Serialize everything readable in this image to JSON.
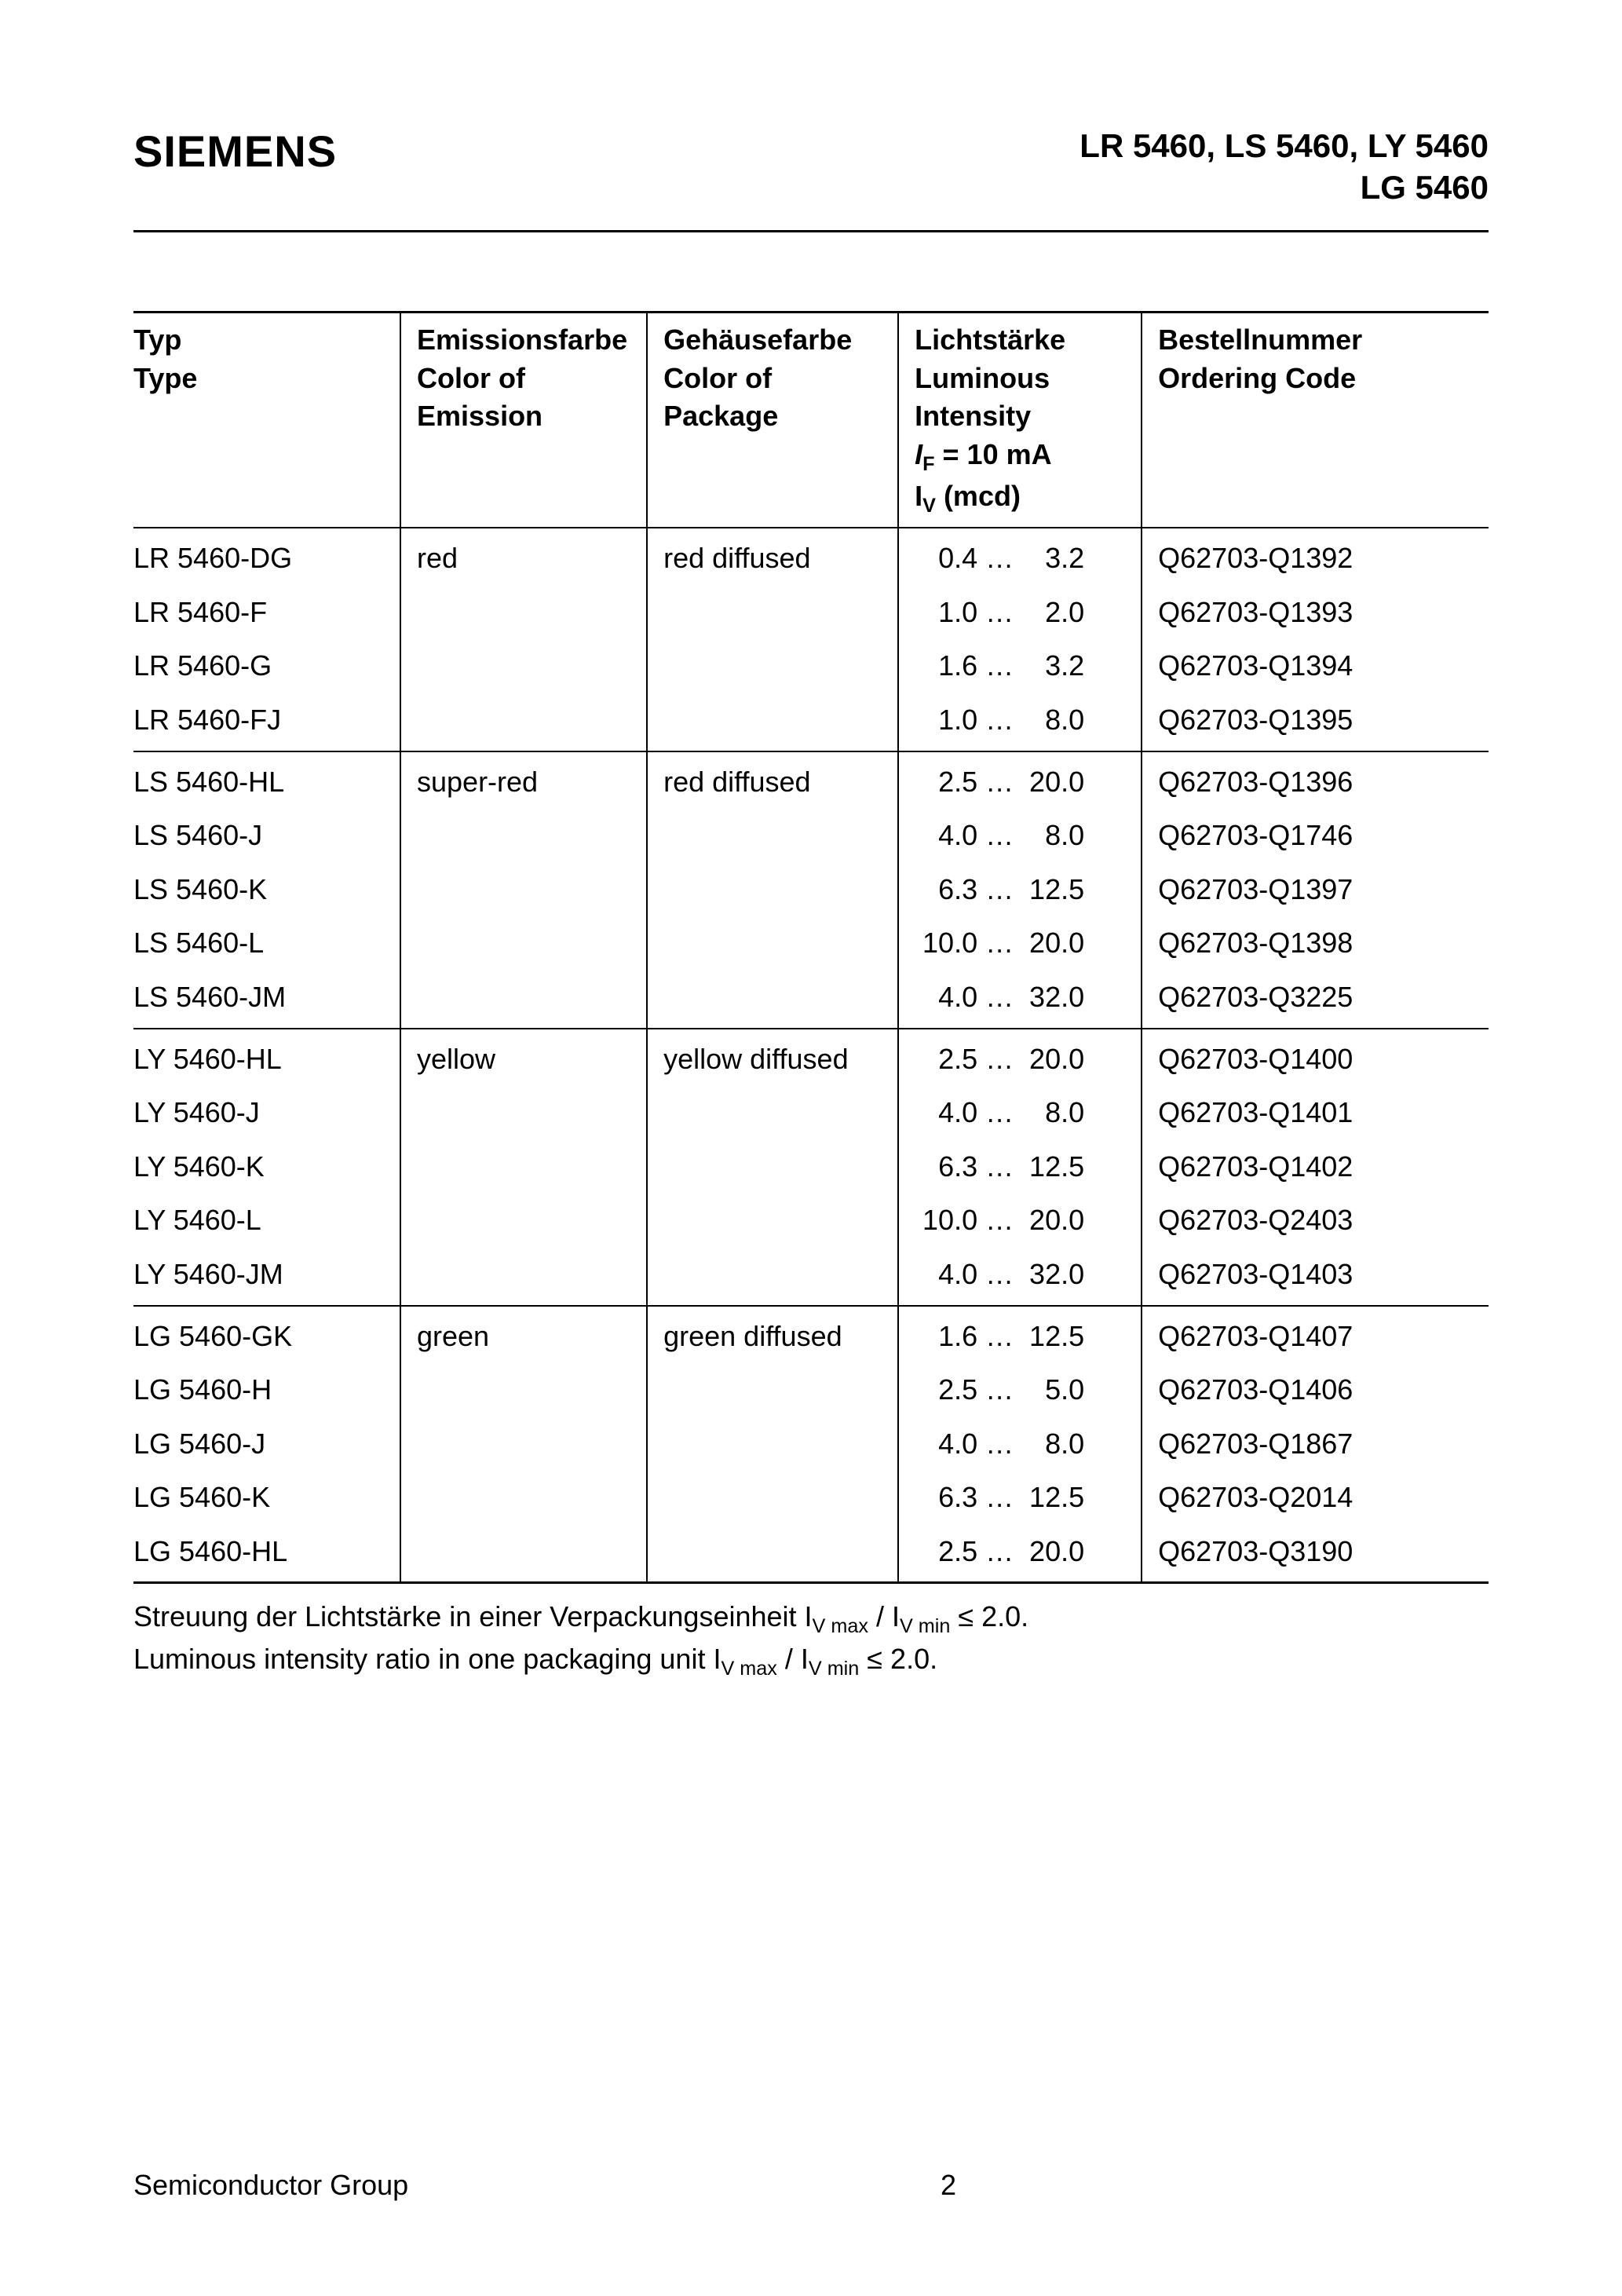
{
  "header": {
    "logo": "SIEMENS",
    "title_line1": "LR 5460, LS 5460, LY 5460",
    "title_line2": "LG 5460"
  },
  "table": {
    "columns": {
      "type": {
        "de": "Typ",
        "en": "Type"
      },
      "emission": {
        "de": "Emissionsfarbe",
        "en_l1": "Color of",
        "en_l2": "Emission"
      },
      "package": {
        "de": "Gehäusefarbe",
        "en_l1": "Color of",
        "en_l2": "Package"
      },
      "luminous": {
        "de": "Lichtstärke",
        "en_l1": "Luminous",
        "en_l2": "Intensity",
        "cond_prefix": "I",
        "cond_sub": "F",
        "cond_rest": " = 10 mA",
        "unit_prefix": "I",
        "unit_sub": "V",
        "unit_rest": " (mcd)"
      },
      "order": {
        "de": "Bestellnummer",
        "en": "Ordering Code"
      }
    },
    "groups": [
      {
        "emission": "red",
        "package": "red diffused",
        "rows": [
          {
            "type": "LR 5460-DG",
            "lum_min": "0.4",
            "lum_max": "3.2",
            "order": "Q62703-Q1392"
          },
          {
            "type": "LR 5460-F",
            "lum_min": "1.0",
            "lum_max": "2.0",
            "order": "Q62703-Q1393"
          },
          {
            "type": "LR 5460-G",
            "lum_min": "1.6",
            "lum_max": "3.2",
            "order": "Q62703-Q1394"
          },
          {
            "type": "LR 5460-FJ",
            "lum_min": "1.0",
            "lum_max": "8.0",
            "order": "Q62703-Q1395"
          }
        ]
      },
      {
        "emission": "super-red",
        "package": "red diffused",
        "rows": [
          {
            "type": "LS 5460-HL",
            "lum_min": "2.5",
            "lum_max": "20.0",
            "order": "Q62703-Q1396"
          },
          {
            "type": "LS 5460-J",
            "lum_min": "4.0",
            "lum_max": "8.0",
            "order": "Q62703-Q1746"
          },
          {
            "type": "LS 5460-K",
            "lum_min": "6.3",
            "lum_max": "12.5",
            "order": "Q62703-Q1397"
          },
          {
            "type": "LS 5460-L",
            "lum_min": "10.0",
            "lum_max": "20.0",
            "order": "Q62703-Q1398"
          },
          {
            "type": "LS 5460-JM",
            "lum_min": "4.0",
            "lum_max": "32.0",
            "order": "Q62703-Q3225"
          }
        ]
      },
      {
        "emission": "yellow",
        "package": "yellow diffused",
        "rows": [
          {
            "type": "LY 5460-HL",
            "lum_min": "2.5",
            "lum_max": "20.0",
            "order": "Q62703-Q1400"
          },
          {
            "type": "LY 5460-J",
            "lum_min": "4.0",
            "lum_max": "8.0",
            "order": "Q62703-Q1401"
          },
          {
            "type": "LY 5460-K",
            "lum_min": "6.3",
            "lum_max": "12.5",
            "order": "Q62703-Q1402"
          },
          {
            "type": "LY 5460-L",
            "lum_min": "10.0",
            "lum_max": "20.0",
            "order": "Q62703-Q2403"
          },
          {
            "type": "LY 5460-JM",
            "lum_min": "4.0",
            "lum_max": "32.0",
            "order": "Q62703-Q1403"
          }
        ]
      },
      {
        "emission": "green",
        "package": "green diffused",
        "rows": [
          {
            "type": "LG 5460-GK",
            "lum_min": "1.6",
            "lum_max": "12.5",
            "order": "Q62703-Q1407"
          },
          {
            "type": "LG 5460-H",
            "lum_min": "2.5",
            "lum_max": "5.0",
            "order": "Q62703-Q1406"
          },
          {
            "type": "LG 5460-J",
            "lum_min": "4.0",
            "lum_max": "8.0",
            "order": "Q62703-Q1867"
          },
          {
            "type": "LG 5460-K",
            "lum_min": "6.3",
            "lum_max": "12.5",
            "order": "Q62703-Q2014"
          },
          {
            "type": "LG 5460-HL",
            "lum_min": "2.5",
            "lum_max": "20.0",
            "order": "Q62703-Q3190"
          }
        ]
      }
    ]
  },
  "notes": {
    "line1_pre": "Streuung der Lichtstärke in einer Verpackungseinheit ",
    "line2_pre": "Luminous intensity ratio in one packaging unit ",
    "ratio_I": "I",
    "ratio_vmax": "V max",
    "ratio_sep": " / ",
    "ratio_vmin": "V min",
    "ratio_tail": " ≤ 2.0."
  },
  "footer": {
    "left": "Semiconductor Group",
    "page": "2"
  }
}
